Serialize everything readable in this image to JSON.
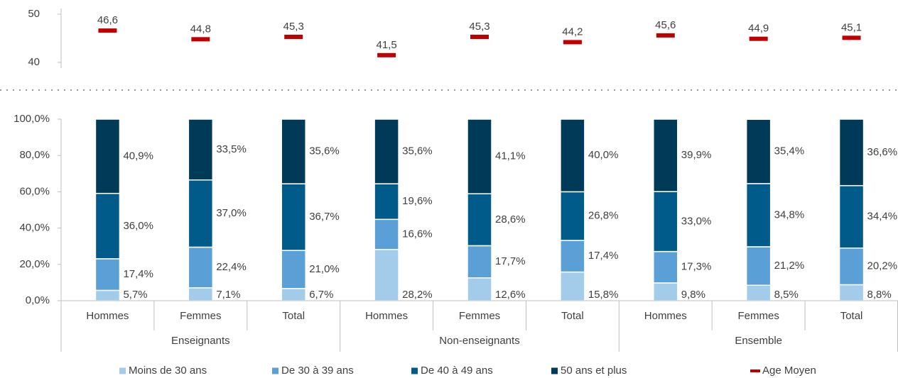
{
  "chart_data": [
    {
      "type": "marker",
      "series": [
        {
          "name": "Age Moyen",
          "color": "#c00000",
          "values": [
            46.6,
            44.8,
            45.3,
            41.5,
            45.3,
            44.2,
            45.6,
            44.9,
            45.1
          ],
          "value_labels": [
            "46,6",
            "44,8",
            "45,3",
            "41,5",
            "45,3",
            "44,2",
            "45,6",
            "44,9",
            "45,1"
          ]
        }
      ],
      "ylim": [
        40,
        50
      ],
      "yticks": [
        40,
        50
      ]
    },
    {
      "type": "stacked_bar",
      "categories": [
        "Hommes",
        "Femmes",
        "Total",
        "Hommes",
        "Femmes",
        "Total",
        "Hommes",
        "Femmes",
        "Total"
      ],
      "groups": [
        "Enseignants",
        "Non-enseignants",
        "Ensemble"
      ],
      "series": [
        {
          "name": "Moins de 30 ans",
          "color": "#a3cbea",
          "values": [
            5.7,
            7.1,
            6.7,
            28.2,
            12.6,
            15.8,
            9.8,
            8.5,
            8.8
          ],
          "value_labels": [
            "5,7%",
            "7,1%",
            "6,7%",
            "28,2%",
            "12,6%",
            "15,8%",
            "9,8%",
            "8,5%",
            "8,8%"
          ]
        },
        {
          "name": "De 30 à 39 ans",
          "color": "#5a9fd6",
          "values": [
            17.4,
            22.4,
            21.0,
            16.6,
            17.7,
            17.4,
            17.3,
            21.2,
            20.2
          ],
          "value_labels": [
            "17,4%",
            "22,4%",
            "21,0%",
            "16,6%",
            "17,7%",
            "17,4%",
            "17,3%",
            "21,2%",
            "20,2%"
          ]
        },
        {
          "name": "De 40 à 49 ans",
          "color": "#005a8a",
          "values": [
            36.0,
            37.0,
            36.7,
            19.6,
            28.6,
            26.8,
            33.0,
            34.8,
            34.4
          ],
          "value_labels": [
            "36,0%",
            "37,0%",
            "36,7%",
            "19,6%",
            "28,6%",
            "26,8%",
            "33,0%",
            "34,8%",
            "34,4%"
          ]
        },
        {
          "name": "50 ans et plus",
          "color": "#003a59",
          "values": [
            40.9,
            33.5,
            35.6,
            35.6,
            41.1,
            40.0,
            39.9,
            35.4,
            36.6
          ],
          "value_labels": [
            "40,9%",
            "33,5%",
            "35,6%",
            "35,6%",
            "41,1%",
            "40,0%",
            "39,9%",
            "35,4%",
            "36,6%"
          ]
        }
      ],
      "ylim": [
        0,
        100
      ],
      "yticks": [
        {
          "value": 0,
          "label": "0,0%"
        },
        {
          "value": 20,
          "label": "20,0%"
        },
        {
          "value": 40,
          "label": "40,0%"
        },
        {
          "value": 60,
          "label": "60,0%"
        },
        {
          "value": 80,
          "label": "80,0%"
        },
        {
          "value": 100,
          "label": "100,0%"
        }
      ]
    }
  ]
}
